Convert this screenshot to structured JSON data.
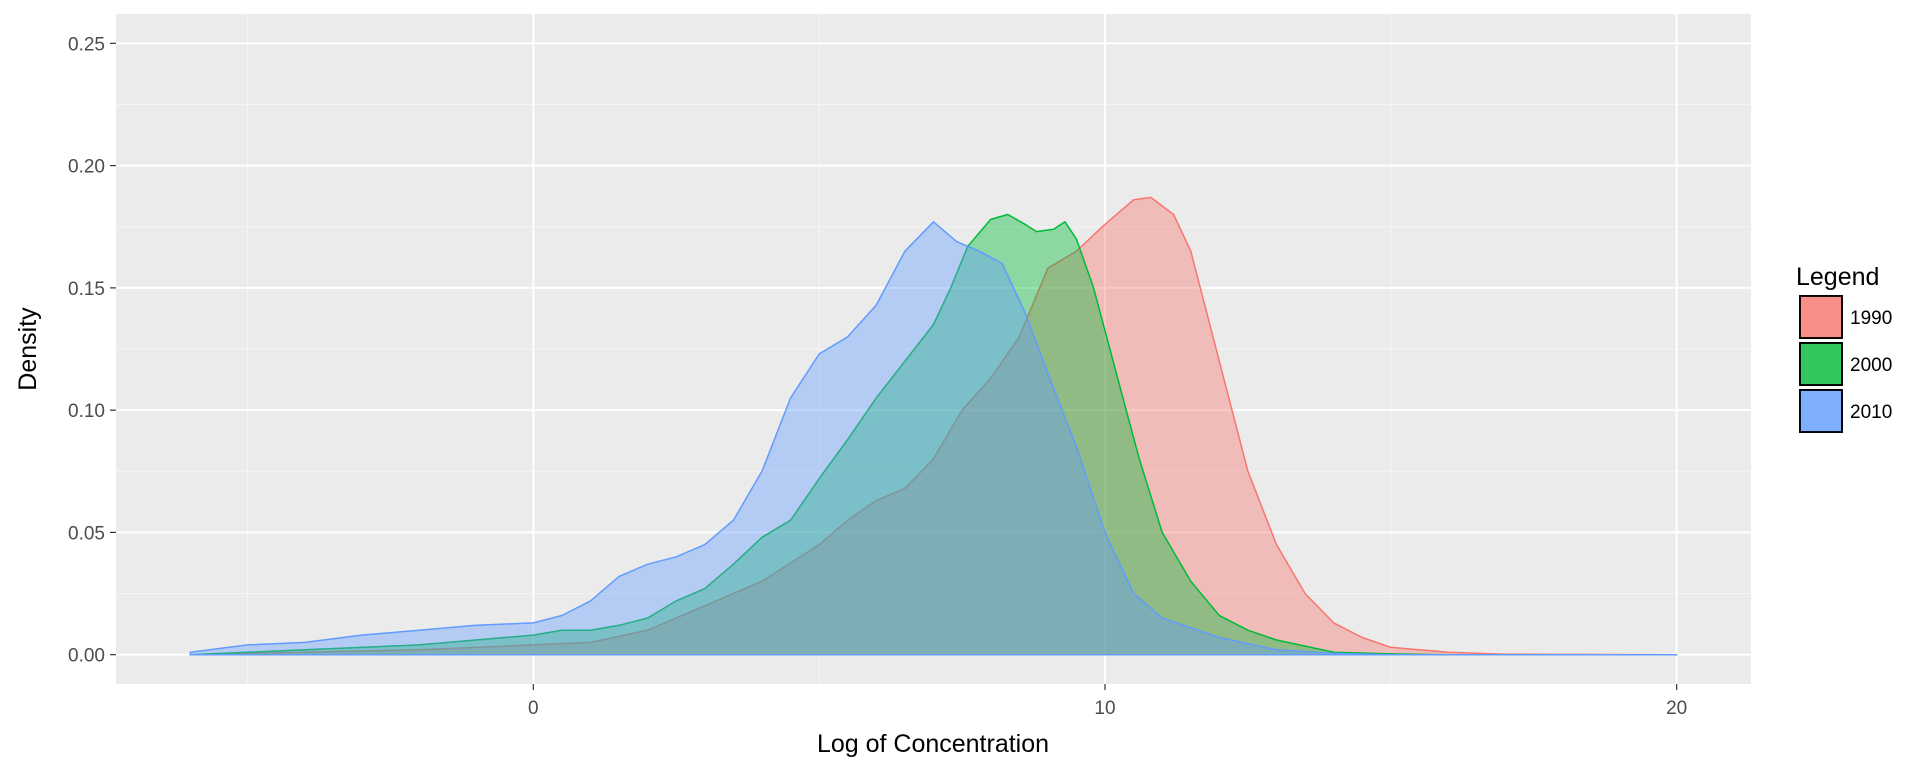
{
  "chart_data": {
    "type": "area",
    "title": "",
    "xlabel": "Log of Concentration",
    "ylabel": "Density",
    "xlim": [
      -7.3,
      21.3
    ],
    "ylim": [
      -0.012,
      0.262
    ],
    "x_ticks": [
      0,
      10,
      20
    ],
    "x_tick_labels": [
      "0",
      "10",
      "20"
    ],
    "y_ticks": [
      0,
      0.05,
      0.1,
      0.15,
      0.2,
      0.25
    ],
    "y_tick_labels": [
      "0.00",
      "0.05",
      "0.10",
      "0.15",
      "0.20",
      "0.25"
    ],
    "grid": true,
    "background": "#ebebeb",
    "legend": {
      "title": "Legend",
      "position": "right"
    },
    "series": [
      {
        "name": "1990",
        "color": "#f8766d",
        "points": [
          [
            -6,
            0.0
          ],
          [
            -4,
            0.001
          ],
          [
            -2,
            0.002
          ],
          [
            0,
            0.004
          ],
          [
            1,
            0.005
          ],
          [
            2,
            0.01
          ],
          [
            3,
            0.02
          ],
          [
            4,
            0.03
          ],
          [
            5,
            0.045
          ],
          [
            5.5,
            0.055
          ],
          [
            6,
            0.063
          ],
          [
            6.5,
            0.068
          ],
          [
            7,
            0.08
          ],
          [
            7.5,
            0.1
          ],
          [
            8,
            0.113
          ],
          [
            8.5,
            0.13
          ],
          [
            9,
            0.158
          ],
          [
            9.5,
            0.165
          ],
          [
            10,
            0.176
          ],
          [
            10.5,
            0.186
          ],
          [
            10.8,
            0.187
          ],
          [
            11.2,
            0.18
          ],
          [
            11.5,
            0.165
          ],
          [
            12,
            0.12
          ],
          [
            12.5,
            0.075
          ],
          [
            13,
            0.045
          ],
          [
            13.5,
            0.025
          ],
          [
            14,
            0.013
          ],
          [
            14.5,
            0.007
          ],
          [
            15,
            0.003
          ],
          [
            16,
            0.001
          ],
          [
            17,
            0.0002
          ],
          [
            20,
            0.0
          ]
        ]
      },
      {
        "name": "2000",
        "color": "#00ba38",
        "points": [
          [
            -6,
            0.0
          ],
          [
            -4,
            0.002
          ],
          [
            -2,
            0.004
          ],
          [
            0,
            0.008
          ],
          [
            0.5,
            0.01
          ],
          [
            1,
            0.01
          ],
          [
            1.5,
            0.012
          ],
          [
            2,
            0.015
          ],
          [
            2.5,
            0.022
          ],
          [
            3,
            0.027
          ],
          [
            3.5,
            0.037
          ],
          [
            4,
            0.048
          ],
          [
            4.5,
            0.055
          ],
          [
            5,
            0.072
          ],
          [
            5.5,
            0.088
          ],
          [
            6,
            0.105
          ],
          [
            6.5,
            0.12
          ],
          [
            7,
            0.135
          ],
          [
            7.3,
            0.15
          ],
          [
            7.6,
            0.167
          ],
          [
            8,
            0.178
          ],
          [
            8.3,
            0.18
          ],
          [
            8.6,
            0.176
          ],
          [
            8.8,
            0.173
          ],
          [
            9.1,
            0.174
          ],
          [
            9.3,
            0.177
          ],
          [
            9.5,
            0.17
          ],
          [
            9.8,
            0.15
          ],
          [
            10.2,
            0.115
          ],
          [
            10.6,
            0.08
          ],
          [
            11,
            0.05
          ],
          [
            11.5,
            0.03
          ],
          [
            12,
            0.016
          ],
          [
            12.5,
            0.01
          ],
          [
            13,
            0.006
          ],
          [
            14,
            0.001
          ],
          [
            15,
            0.0003
          ],
          [
            16,
            0.0
          ]
        ]
      },
      {
        "name": "2010",
        "color": "#619cff",
        "points": [
          [
            -6,
            0.001
          ],
          [
            -5,
            0.004
          ],
          [
            -4,
            0.005
          ],
          [
            -3,
            0.008
          ],
          [
            -2,
            0.01
          ],
          [
            -1,
            0.012
          ],
          [
            0,
            0.013
          ],
          [
            0.5,
            0.016
          ],
          [
            1,
            0.022
          ],
          [
            1.5,
            0.032
          ],
          [
            2,
            0.037
          ],
          [
            2.5,
            0.04
          ],
          [
            3,
            0.045
          ],
          [
            3.5,
            0.055
          ],
          [
            4,
            0.075
          ],
          [
            4.5,
            0.105
          ],
          [
            5,
            0.123
          ],
          [
            5.5,
            0.13
          ],
          [
            6,
            0.143
          ],
          [
            6.5,
            0.165
          ],
          [
            7,
            0.177
          ],
          [
            7.4,
            0.169
          ],
          [
            7.8,
            0.165
          ],
          [
            8.2,
            0.16
          ],
          [
            8.6,
            0.14
          ],
          [
            9,
            0.115
          ],
          [
            9.5,
            0.085
          ],
          [
            10,
            0.05
          ],
          [
            10.5,
            0.025
          ],
          [
            11,
            0.015
          ],
          [
            12,
            0.007
          ],
          [
            13,
            0.002
          ],
          [
            14,
            0.0005
          ],
          [
            15,
            0.0
          ],
          [
            20,
            0.0
          ]
        ]
      }
    ]
  }
}
